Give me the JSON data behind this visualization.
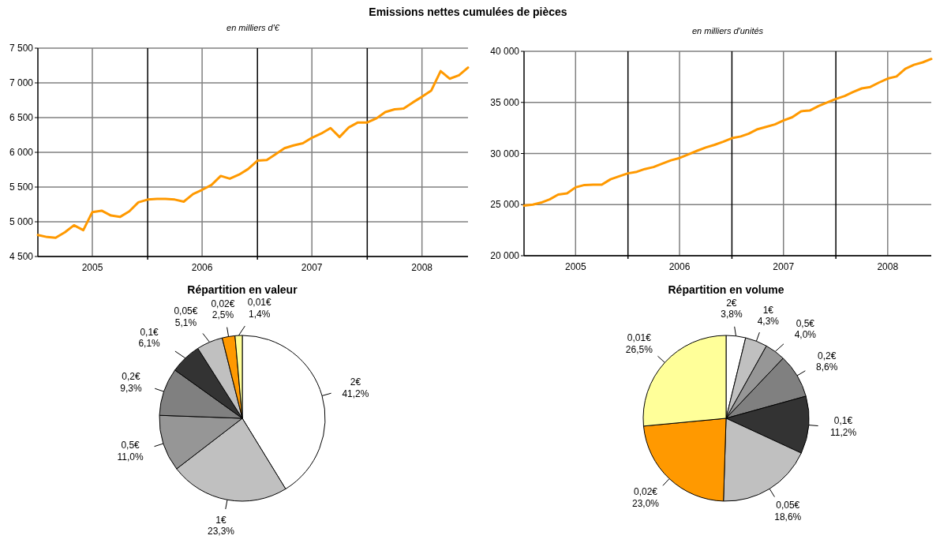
{
  "chart_data": [
    {
      "type": "line",
      "title": "Emissions nettes cumulées de pièces",
      "subtitle": "en milliers d'€",
      "x": [
        "2005-01",
        "2005-02",
        "2005-03",
        "2005-04",
        "2005-05",
        "2005-06",
        "2005-07",
        "2005-08",
        "2005-09",
        "2005-10",
        "2005-11",
        "2005-12",
        "2006-01",
        "2006-02",
        "2006-03",
        "2006-04",
        "2006-05",
        "2006-06",
        "2006-07",
        "2006-08",
        "2006-09",
        "2006-10",
        "2006-11",
        "2006-12",
        "2007-01",
        "2007-02",
        "2007-03",
        "2007-04",
        "2007-05",
        "2007-06",
        "2007-07",
        "2007-08",
        "2007-09",
        "2007-10",
        "2007-11",
        "2007-12",
        "2008-01",
        "2008-02",
        "2008-03",
        "2008-04",
        "2008-05",
        "2008-06",
        "2008-07",
        "2008-08",
        "2008-09",
        "2008-10",
        "2008-11",
        "2008-12"
      ],
      "xlim": [
        "2005-01",
        "2008-12"
      ],
      "xticks": [
        {
          "value": "2005-07",
          "label": "2005"
        },
        {
          "value": "2006-07",
          "label": "2006"
        },
        {
          "value": "2007-07",
          "label": "2007"
        },
        {
          "value": "2008-07",
          "label": "2008"
        }
      ],
      "ylim": [
        4500,
        7500
      ],
      "yticks": [
        {
          "value": 4500,
          "label": "4 500"
        },
        {
          "value": 5000,
          "label": "5 000"
        },
        {
          "value": 5500,
          "label": "5 500"
        },
        {
          "value": 6000,
          "label": "6 000"
        },
        {
          "value": 6500,
          "label": "6 500"
        },
        {
          "value": 7000,
          "label": "7 000"
        },
        {
          "value": 7500,
          "label": "7 500"
        }
      ],
      "grid": true,
      "ref_lines": [
        {
          "axis": "x",
          "value": "2006-01",
          "color": "#000000"
        },
        {
          "axis": "x",
          "value": "2007-01",
          "color": "#000000"
        },
        {
          "axis": "x",
          "value": "2008-01",
          "color": "#000000"
        }
      ],
      "series": [
        {
          "color": "#ff9900",
          "values": [
            4810,
            4780,
            4770,
            4850,
            4950,
            4880,
            5140,
            5160,
            5090,
            5070,
            5150,
            5280,
            5320,
            5330,
            5330,
            5320,
            5290,
            5400,
            5460,
            5530,
            5660,
            5620,
            5680,
            5760,
            5880,
            5890,
            5970,
            6060,
            6100,
            6130,
            6210,
            6270,
            6350,
            6220,
            6360,
            6430,
            6430,
            6490,
            6580,
            6620,
            6630,
            6720,
            6800,
            6890,
            7170,
            7060,
            7110,
            7220
          ]
        }
      ]
    },
    {
      "type": "line",
      "subtitle": "en milliers d'unités",
      "x": [
        "2005-01",
        "2005-02",
        "2005-03",
        "2005-04",
        "2005-05",
        "2005-06",
        "2005-07",
        "2005-08",
        "2005-09",
        "2005-10",
        "2005-11",
        "2005-12",
        "2006-01",
        "2006-02",
        "2006-03",
        "2006-04",
        "2006-05",
        "2006-06",
        "2006-07",
        "2006-08",
        "2006-09",
        "2006-10",
        "2006-11",
        "2006-12",
        "2007-01",
        "2007-02",
        "2007-03",
        "2007-04",
        "2007-05",
        "2007-06",
        "2007-07",
        "2007-08",
        "2007-09",
        "2007-10",
        "2007-11",
        "2007-12",
        "2008-01",
        "2008-02",
        "2008-03",
        "2008-04",
        "2008-05",
        "2008-06",
        "2008-07",
        "2008-08",
        "2008-09",
        "2008-10",
        "2008-11",
        "2008-12"
      ],
      "xlim": [
        "2005-01",
        "2008-12"
      ],
      "xticks": [
        {
          "value": "2005-07",
          "label": "2005"
        },
        {
          "value": "2006-07",
          "label": "2006"
        },
        {
          "value": "2007-07",
          "label": "2007"
        },
        {
          "value": "2008-07",
          "label": "2008"
        }
      ],
      "ylim": [
        20000,
        40000
      ],
      "yticks": [
        {
          "value": 20000,
          "label": "20 000"
        },
        {
          "value": 25000,
          "label": "25 000"
        },
        {
          "value": 30000,
          "label": "30 000"
        },
        {
          "value": 35000,
          "label": "35 000"
        },
        {
          "value": 40000,
          "label": "40 000"
        }
      ],
      "grid": true,
      "ref_lines": [
        {
          "axis": "x",
          "value": "2006-01",
          "color": "#000000"
        },
        {
          "axis": "x",
          "value": "2007-01",
          "color": "#000000"
        },
        {
          "axis": "x",
          "value": "2008-01",
          "color": "#000000"
        }
      ],
      "series": [
        {
          "color": "#ff9900",
          "values": [
            24900,
            25000,
            25190,
            25510,
            25980,
            26100,
            26690,
            26920,
            26950,
            26950,
            27480,
            27770,
            28060,
            28210,
            28480,
            28680,
            29000,
            29330,
            29560,
            29910,
            30270,
            30590,
            30850,
            31150,
            31500,
            31670,
            31940,
            32380,
            32610,
            32850,
            33230,
            33550,
            34140,
            34200,
            34640,
            34990,
            35340,
            35630,
            36010,
            36370,
            36510,
            36950,
            37330,
            37540,
            38300,
            38680,
            38920,
            39250
          ]
        }
      ]
    },
    {
      "type": "pie",
      "title": "Répartition en valeur",
      "categories": [
        "2€",
        "1€",
        "0,5€",
        "0,2€",
        "0,1€",
        "0,05€",
        "0,02€",
        "0,01€"
      ],
      "values": [
        41.2,
        23.3,
        11.0,
        9.3,
        6.1,
        5.1,
        2.5,
        1.4
      ],
      "value_labels": [
        "41,2%",
        "23,3%",
        "11,0%",
        "9,3%",
        "6,1%",
        "5,1%",
        "2,5%",
        "1,4%"
      ],
      "colors": [
        "#ffffff",
        "#c0c0c0",
        "#969696",
        "#808080",
        "#333333",
        "#c0c0c0",
        "#ff9900",
        "#ffff99"
      ]
    },
    {
      "type": "pie",
      "title": "Répartition en volume",
      "categories": [
        "2€",
        "1€",
        "0,5€",
        "0,2€",
        "0,1€",
        "0,05€",
        "0,02€",
        "0,01€"
      ],
      "values": [
        3.8,
        4.3,
        4.0,
        8.6,
        11.2,
        18.6,
        23.0,
        26.5
      ],
      "value_labels": [
        "3,8%",
        "4,3%",
        "4,0%",
        "8,6%",
        "11,2%",
        "18,6%",
        "23,0%",
        "26,5%"
      ],
      "colors": [
        "#ffffff",
        "#c0c0c0",
        "#969696",
        "#808080",
        "#333333",
        "#c0c0c0",
        "#ff9900",
        "#ffff99"
      ]
    }
  ]
}
